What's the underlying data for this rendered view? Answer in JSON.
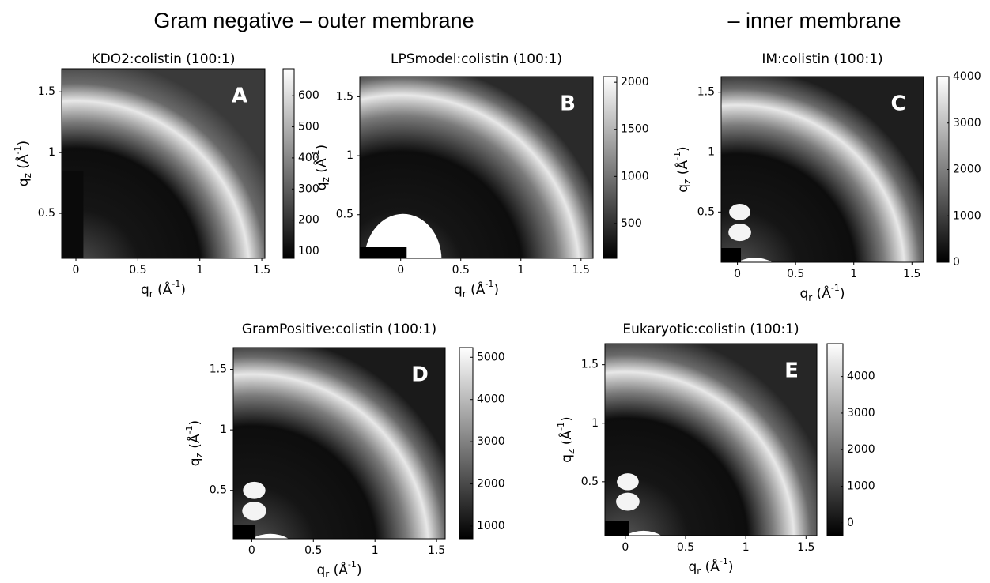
{
  "headings": [
    "Gram negative – outer membrane",
    "– inner membrane"
  ],
  "chart_data": [
    {
      "type": "heatmap",
      "title": "KDO2:colistin (100:1)",
      "panel": "A",
      "xlabel": {
        "symbol": "q",
        "sub": "r",
        "unit": " (Å",
        "sup": "-1",
        "close": ")"
      },
      "ylabel": {
        "symbol": "q",
        "sub": "z",
        "unit": " (Å",
        "sup": "-1",
        "close": ")"
      },
      "xlim": [
        -0.115,
        1.525
      ],
      "ylim": [
        0.13,
        1.69
      ],
      "xticks": [
        0,
        0.5,
        1,
        1.5
      ],
      "yticks": [
        0.5,
        1,
        1.5
      ],
      "colorbar": {
        "lim": [
          77,
          687
        ],
        "ticks": [
          100,
          200,
          300,
          400,
          500,
          600
        ]
      }
    },
    {
      "type": "heatmap",
      "title": "LPSmodel:colistin (100:1)",
      "panel": "B",
      "xlabel": {
        "symbol": "q",
        "sub": "r",
        "unit": " (Å",
        "sup": "-1",
        "close": ")"
      },
      "ylabel": {
        "symbol": "q",
        "sub": "z",
        "unit": " (Å",
        "sup": "-1",
        "close": ")"
      },
      "xlim": [
        -0.34,
        1.6
      ],
      "ylim": [
        0.13,
        1.67
      ],
      "xticks": [
        0,
        0.5,
        1,
        1.5
      ],
      "yticks": [
        0.5,
        1,
        1.5
      ],
      "colorbar": {
        "lim": [
          130,
          2060
        ],
        "ticks": [
          500,
          1000,
          1500,
          2000
        ]
      }
    },
    {
      "type": "heatmap",
      "title": "IM:colistin (100:1)",
      "panel": "C",
      "xlabel": {
        "symbol": "q",
        "sub": "r",
        "unit": " (Å",
        "sup": "-1",
        "close": ")"
      },
      "ylabel": {
        "symbol": "q",
        "sub": "z",
        "unit": " (Å",
        "sup": "-1",
        "close": ")"
      },
      "xlim": [
        -0.14,
        1.6
      ],
      "ylim": [
        0.08,
        1.63
      ],
      "xticks": [
        0,
        0.5,
        1,
        1.5
      ],
      "yticks": [
        0.5,
        1,
        1.5
      ],
      "colorbar": {
        "lim": [
          0,
          4000
        ],
        "ticks": [
          0,
          1000,
          2000,
          3000,
          4000
        ]
      }
    },
    {
      "type": "heatmap",
      "title": "GramPositive:colistin (100:1)",
      "panel": "D",
      "xlabel": {
        "symbol": "q",
        "sub": "r",
        "unit": " (Å",
        "sup": "-1",
        "close": ")"
      },
      "ylabel": {
        "symbol": "q",
        "sub": "z",
        "unit": " (Å",
        "sup": "-1",
        "close": ")"
      },
      "xlim": [
        -0.15,
        1.57
      ],
      "ylim": [
        0.1,
        1.68
      ],
      "xticks": [
        0,
        0.5,
        1,
        1.5
      ],
      "yticks": [
        0.5,
        1,
        1.5
      ],
      "colorbar": {
        "lim": [
          700,
          5230
        ],
        "ticks": [
          1000,
          2000,
          3000,
          4000,
          5000
        ]
      }
    },
    {
      "type": "heatmap",
      "title": "Eukaryotic:colistin (100:1)",
      "panel": "E",
      "xlabel": {
        "symbol": "q",
        "sub": "r",
        "unit": " (Å",
        "sup": "-1",
        "close": ")"
      },
      "ylabel": {
        "symbol": "q",
        "sub": "z",
        "unit": " (Å",
        "sup": "-1",
        "close": ")"
      },
      "xlim": [
        -0.17,
        1.59
      ],
      "ylim": [
        0.04,
        1.68
      ],
      "xticks": [
        0,
        0.5,
        1,
        1.5
      ],
      "yticks": [
        0.5,
        1,
        1.5
      ],
      "colorbar": {
        "lim": [
          -350,
          4900
        ],
        "ticks": [
          0,
          1000,
          2000,
          3000,
          4000
        ]
      }
    }
  ]
}
